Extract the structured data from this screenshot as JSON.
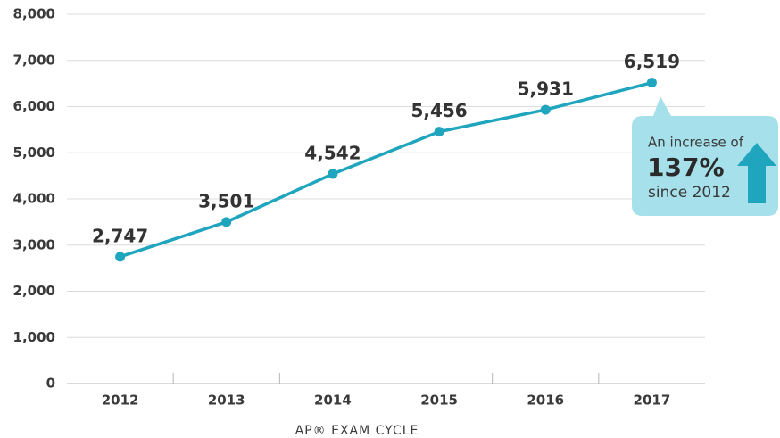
{
  "chart_data": {
    "type": "line",
    "categories": [
      "2012",
      "2013",
      "2014",
      "2015",
      "2016",
      "2017"
    ],
    "values": [
      2747,
      3501,
      4542,
      5456,
      5931,
      6519
    ],
    "value_labels": [
      "2,747",
      "3,501",
      "4,542",
      "5,456",
      "5,931",
      "6,519"
    ],
    "color": "#1fa5bd",
    "ylim": [
      0,
      8000
    ],
    "yticks": [
      0,
      {
        "value": 1000,
        "label": "1,000"
      },
      {
        "value": 2000,
        "label": "2,000"
      },
      {
        "value": 3000,
        "label": "3,000"
      },
      {
        "value": 4000,
        "label": "4,000"
      },
      {
        "value": 5000,
        "label": "5,000"
      },
      {
        "value": 6000,
        "label": "6,000"
      },
      {
        "value": 7000,
        "label": "7,000"
      },
      {
        "value": 8000,
        "label": "8,000"
      }
    ],
    "grid": true,
    "xlabel": "AP® EXAM CYCLE",
    "annotation": {
      "line1": "An increase of",
      "line2": "137%",
      "line3": "since 2012"
    }
  }
}
